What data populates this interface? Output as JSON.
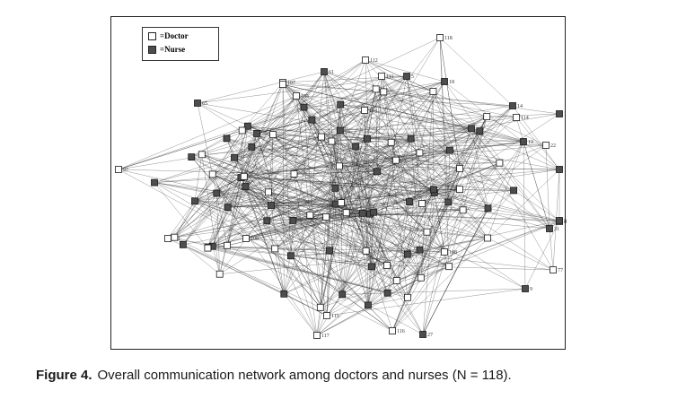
{
  "figure": {
    "legend": {
      "doctor_label": "=Doctor",
      "nurse_label": "=Nurse",
      "colors": {
        "doctor": "#ffffff",
        "nurse": "#4d4d4d",
        "edge": "#222222"
      }
    },
    "caption": {
      "label": "Figure 4.",
      "text": "Overall communication network among doctors and nurses (N = 118)."
    },
    "visible_node_labels": [
      "118",
      "112",
      "111",
      "107",
      "105",
      "104",
      "65",
      "61",
      "5",
      "18",
      "14",
      "114",
      "1",
      "19",
      "22",
      "10",
      "97",
      "81",
      "30",
      "31",
      "101",
      "108",
      "77",
      "9",
      "116",
      "117",
      "115",
      "27",
      "108"
    ]
  }
}
